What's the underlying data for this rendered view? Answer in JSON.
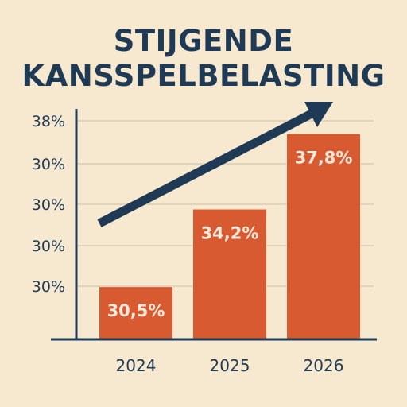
{
  "title_line1": "STIJGENDE",
  "title_line2": "KANSSPELBELASTING",
  "colors": {
    "bar": "#d85a31",
    "axis": "#1f3a55",
    "background": "#f6e9cf",
    "label": "#fbe9dc",
    "grid": "#d9cdb6"
  },
  "chart_data": {
    "type": "bar",
    "title": "STIJGENDE KANSSPELBELASTING",
    "xlabel": "",
    "ylabel": "",
    "categories": [
      "2024",
      "2025",
      "2026"
    ],
    "values": [
      30.5,
      34.2,
      37.8
    ],
    "data_labels": [
      "30,5%",
      "34,2%",
      "37,8%"
    ],
    "y_tick_labels": [
      "38%",
      "30%",
      "30%",
      "30%",
      "30%"
    ],
    "ylim": [
      28,
      39
    ],
    "grid": true,
    "trend_arrow": true
  }
}
